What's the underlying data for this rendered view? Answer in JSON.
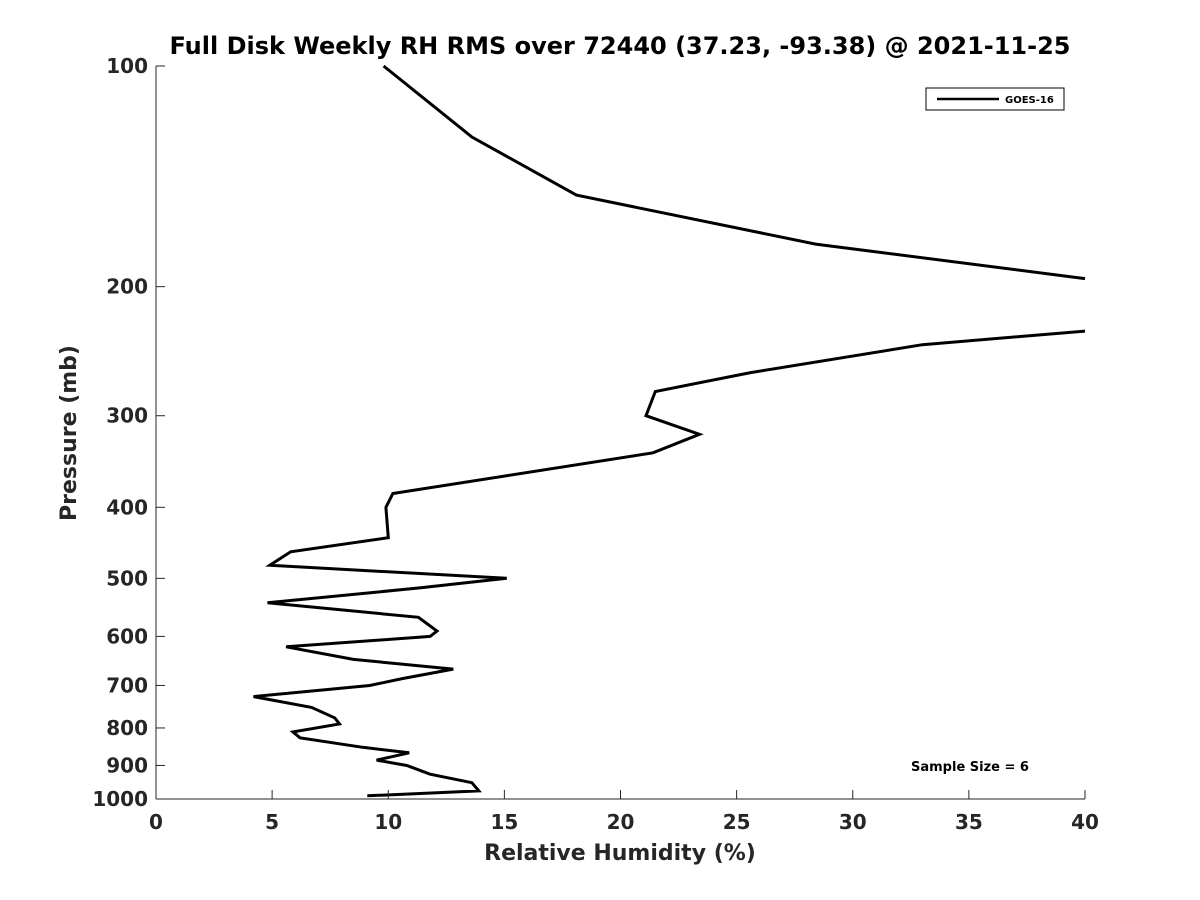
{
  "chart_data": {
    "type": "line",
    "title": "Full Disk Weekly RH RMS over 72440 (37.23, -93.38) @ 2021-11-25",
    "xlabel": "Relative Humidity (%)",
    "ylabel": "Pressure (mb)",
    "xlim": [
      0,
      40
    ],
    "ylim": [
      100,
      1000
    ],
    "y_scale": "log",
    "y_reversed": true,
    "grid": false,
    "legend_position": "top-right",
    "x_ticks": [
      "0",
      "5",
      "10",
      "15",
      "20",
      "25",
      "30",
      "35",
      "40"
    ],
    "y_ticks": [
      "100",
      "200",
      "300",
      "400",
      "500",
      "600",
      "700",
      "800",
      "900",
      "1000"
    ],
    "annotation": "Sample Size = 6",
    "series": [
      {
        "name": "GOES-16",
        "color": "#000000",
        "segments": [
          [
            {
              "x": 9.8,
              "y": 100
            },
            {
              "x": 13.6,
              "y": 125
            },
            {
              "x": 18.1,
              "y": 150
            },
            {
              "x": 28.4,
              "y": 175
            },
            {
              "x": 40.0,
              "y": 195
            }
          ],
          [
            {
              "x": 40.0,
              "y": 230
            },
            {
              "x": 33.0,
              "y": 240
            },
            {
              "x": 25.6,
              "y": 262
            },
            {
              "x": 21.5,
              "y": 278
            },
            {
              "x": 21.1,
              "y": 300
            },
            {
              "x": 23.4,
              "y": 318
            },
            {
              "x": 21.4,
              "y": 337
            },
            {
              "x": 10.2,
              "y": 383
            },
            {
              "x": 9.9,
              "y": 400
            },
            {
              "x": 10.0,
              "y": 440
            },
            {
              "x": 5.8,
              "y": 460
            },
            {
              "x": 4.9,
              "y": 480
            },
            {
              "x": 15.1,
              "y": 500
            },
            {
              "x": 11.4,
              "y": 515
            },
            {
              "x": 4.8,
              "y": 540
            },
            {
              "x": 11.3,
              "y": 565
            },
            {
              "x": 12.1,
              "y": 590
            },
            {
              "x": 11.8,
              "y": 600
            },
            {
              "x": 5.6,
              "y": 620
            },
            {
              "x": 8.5,
              "y": 645
            },
            {
              "x": 12.8,
              "y": 665
            },
            {
              "x": 10.6,
              "y": 685
            },
            {
              "x": 9.2,
              "y": 700
            },
            {
              "x": 4.2,
              "y": 725
            },
            {
              "x": 6.7,
              "y": 750
            },
            {
              "x": 7.7,
              "y": 775
            },
            {
              "x": 7.9,
              "y": 790
            },
            {
              "x": 5.9,
              "y": 810
            },
            {
              "x": 6.2,
              "y": 825
            },
            {
              "x": 8.9,
              "y": 850
            },
            {
              "x": 10.9,
              "y": 865
            },
            {
              "x": 9.5,
              "y": 885
            },
            {
              "x": 10.8,
              "y": 900
            },
            {
              "x": 11.8,
              "y": 925
            },
            {
              "x": 13.6,
              "y": 950
            },
            {
              "x": 13.9,
              "y": 975
            },
            {
              "x": 9.1,
              "y": 990
            }
          ]
        ]
      }
    ]
  }
}
